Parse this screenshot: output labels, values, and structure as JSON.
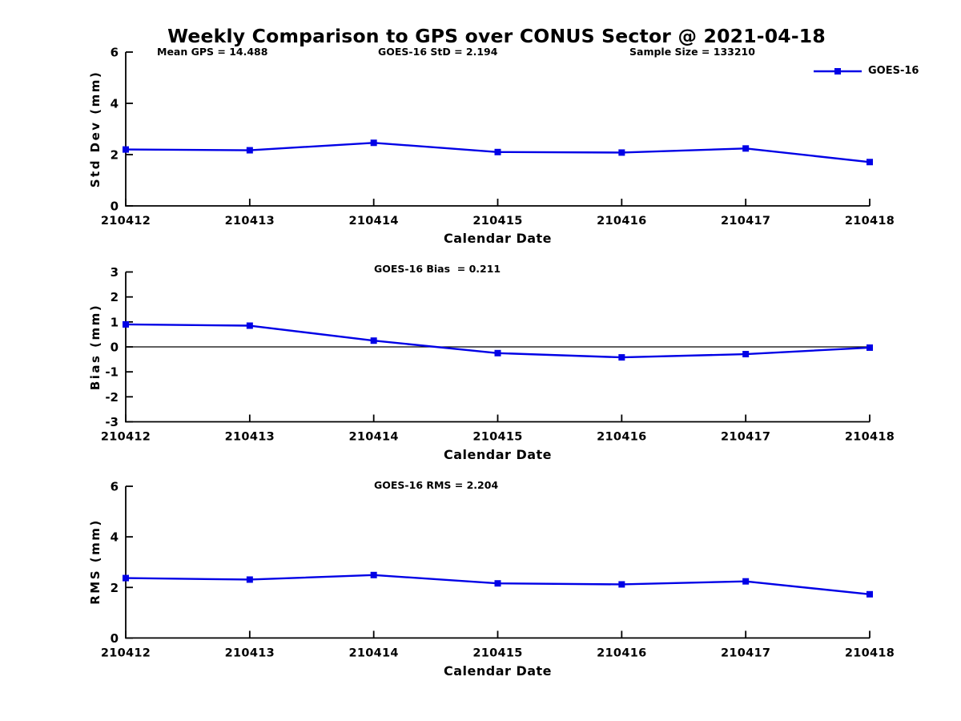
{
  "figure": {
    "title": "Weekly Comparison to GPS over CONUS Sector @ 2021-04-18",
    "annotations": {
      "mean_gps": "Mean GPS = 14.488",
      "std": "GOES-16 StD = 2.194",
      "sample_size": "Sample Size = 133210",
      "bias": "GOES-16 Bias  = 0.211",
      "rms": "GOES-16 RMS = 2.204"
    },
    "legend": {
      "label": "GOES-16",
      "color": "#0000E6",
      "marker": "square"
    }
  },
  "chart_data": [
    {
      "type": "line",
      "name": "std_dev",
      "series_name": "GOES-16",
      "ylabel": "Std Dev (mm)",
      "xlabel": "Calendar Date",
      "categories": [
        "210412",
        "210413",
        "210414",
        "210415",
        "210416",
        "210417",
        "210418"
      ],
      "values": [
        2.2,
        2.17,
        2.46,
        2.1,
        2.08,
        2.24,
        1.71
      ],
      "ylim": [
        0,
        6
      ],
      "yticks": [
        0,
        2,
        4,
        6
      ],
      "grid": false,
      "zero_line": false,
      "line_color": "#0000E6",
      "marker": "square",
      "legend_position": "top-right"
    },
    {
      "type": "line",
      "name": "bias",
      "series_name": "GOES-16",
      "ylabel": "Bias (mm)",
      "xlabel": "Calendar Date",
      "categories": [
        "210412",
        "210413",
        "210414",
        "210415",
        "210416",
        "210417",
        "210418"
      ],
      "values": [
        0.9,
        0.85,
        0.25,
        -0.25,
        -0.42,
        -0.29,
        -0.03
      ],
      "ylim": [
        -3,
        3
      ],
      "yticks": [
        -3,
        -2,
        -1,
        0,
        1,
        2,
        3
      ],
      "grid": false,
      "zero_line": true,
      "line_color": "#0000E6",
      "marker": "square"
    },
    {
      "type": "line",
      "name": "rms",
      "series_name": "GOES-16",
      "ylabel": "RMS (mm)",
      "xlabel": "Calendar Date",
      "categories": [
        "210412",
        "210413",
        "210414",
        "210415",
        "210416",
        "210417",
        "210418"
      ],
      "values": [
        2.37,
        2.31,
        2.49,
        2.16,
        2.12,
        2.24,
        1.73
      ],
      "ylim": [
        0,
        6
      ],
      "yticks": [
        0,
        2,
        4,
        6
      ],
      "grid": false,
      "zero_line": false,
      "line_color": "#0000E6",
      "marker": "square"
    }
  ]
}
